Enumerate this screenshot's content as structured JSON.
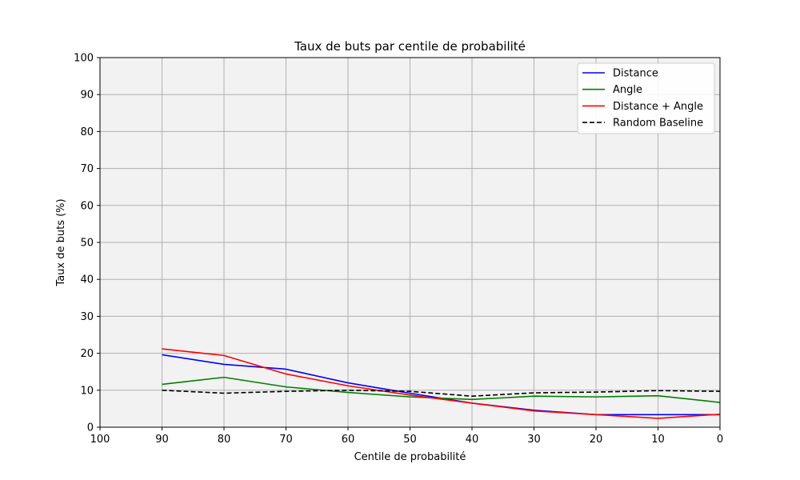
{
  "chart_data": {
    "type": "line",
    "title": "Taux de buts par centile de probabilité",
    "xlabel": "Centile de probabilité",
    "ylabel": "Taux de buts (%)",
    "xlim": [
      100,
      0
    ],
    "ylim": [
      0,
      100
    ],
    "x_reversed": true,
    "xticks": [
      100,
      90,
      80,
      70,
      60,
      50,
      40,
      30,
      20,
      10,
      0
    ],
    "yticks": [
      0,
      10,
      20,
      30,
      40,
      50,
      60,
      70,
      80,
      90,
      100
    ],
    "grid": true,
    "legend_position": "top-right",
    "background_color": "#f2f2f2",
    "x": [
      90,
      80,
      70,
      60,
      50,
      40,
      30,
      20,
      10,
      0
    ],
    "series": [
      {
        "name": "Distance",
        "color": "#0000ff",
        "style": "solid",
        "values": [
          19.6,
          17.0,
          15.7,
          12.0,
          9.2,
          6.5,
          4.6,
          3.4,
          3.4,
          3.4
        ]
      },
      {
        "name": "Angle",
        "color": "#008000",
        "style": "solid",
        "values": [
          11.6,
          13.5,
          10.9,
          9.4,
          8.2,
          7.5,
          8.4,
          8.2,
          8.5,
          6.7
        ]
      },
      {
        "name": "Distance + Angle",
        "color": "#ff0000",
        "style": "solid",
        "values": [
          21.2,
          19.4,
          14.4,
          11.2,
          8.7,
          6.5,
          4.4,
          3.4,
          2.4,
          3.5
        ]
      },
      {
        "name": "Random Baseline",
        "color": "#000000",
        "style": "dashed",
        "values": [
          10.0,
          9.2,
          9.7,
          10.0,
          9.7,
          8.4,
          9.3,
          9.5,
          9.9,
          9.7
        ]
      }
    ]
  }
}
